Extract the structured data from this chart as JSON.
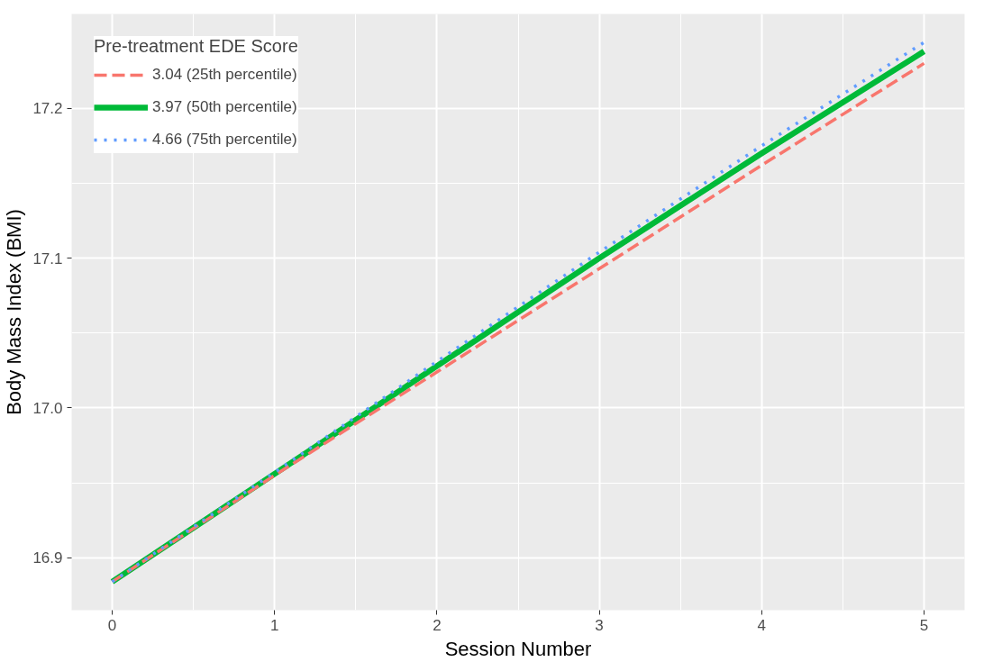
{
  "chart_data": {
    "type": "line",
    "xlabel": "Session Number",
    "ylabel": "Body Mass Index (BMI)",
    "legend_title": "Pre-treatment EDE Score",
    "x": [
      0,
      1,
      2,
      3,
      4,
      5
    ],
    "series": [
      {
        "name": "3.04 (25th percentile)",
        "color": "#f8766d",
        "line_style": "dashed",
        "values": [
          16.884,
          16.955,
          17.024,
          17.093,
          17.162,
          17.23
        ]
      },
      {
        "name": "3.97 (50th percentile)",
        "color": "#00ba38",
        "line_style": "solid",
        "values": [
          16.884,
          16.956,
          17.028,
          17.1,
          17.17,
          17.238
        ]
      },
      {
        "name": "4.66 (75th percentile)",
        "color": "#619cff",
        "line_style": "dotted",
        "values": [
          16.884,
          16.957,
          17.031,
          17.104,
          17.175,
          17.244
        ]
      }
    ],
    "xlim": [
      -0.25,
      5.25
    ],
    "ylim": [
      16.865,
      17.263
    ],
    "xticks": [
      0,
      1,
      2,
      3,
      4,
      5
    ],
    "yticks": [
      {
        "value": 16.9,
        "label": "16.9"
      },
      {
        "value": 17.0,
        "label": "17.0"
      },
      {
        "value": 17.1,
        "label": "17.1"
      },
      {
        "value": 17.2,
        "label": "17.2"
      }
    ],
    "grid": true,
    "legend": "top left",
    "marker": "none"
  }
}
